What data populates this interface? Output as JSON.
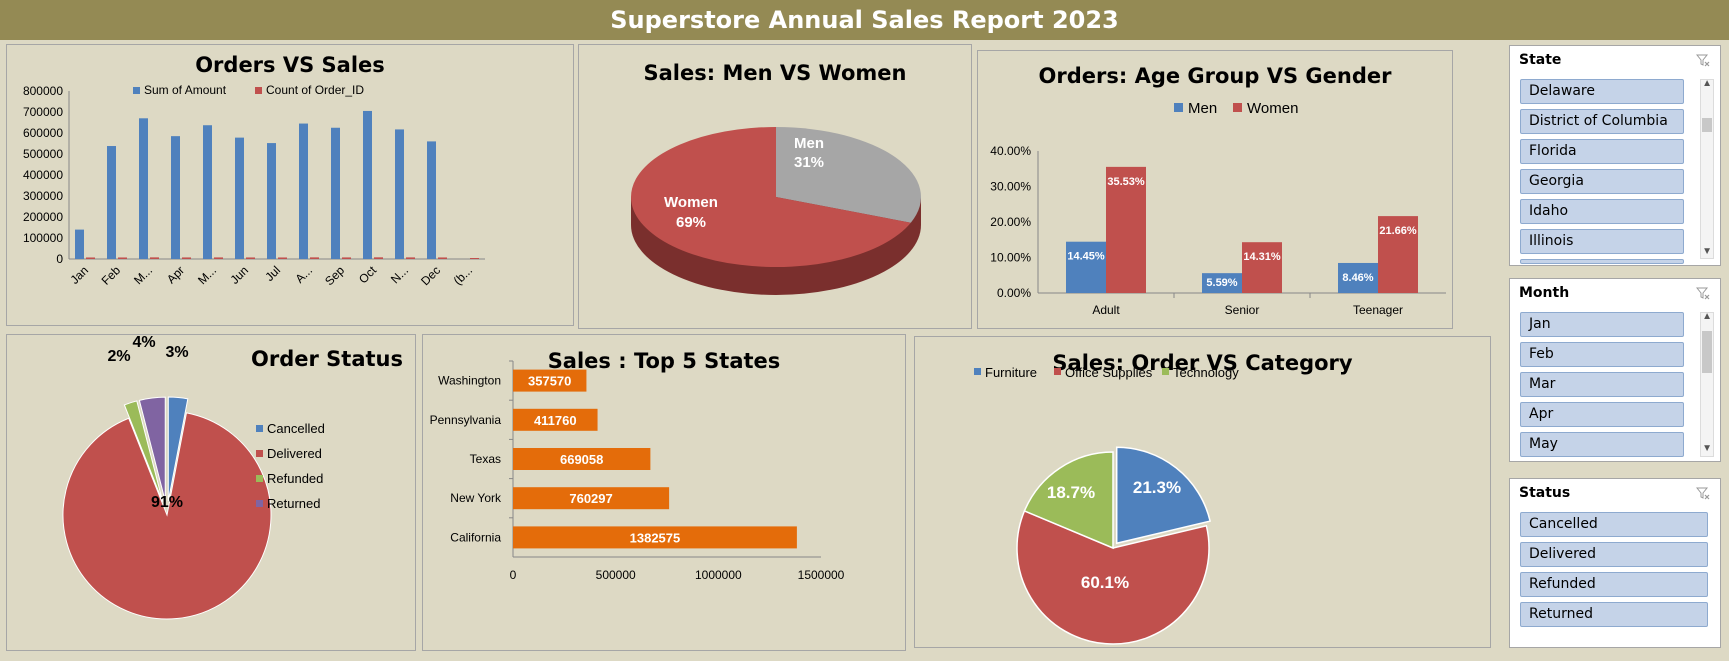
{
  "report_title": "Superstore Annual Sales Report 2023",
  "colors": {
    "blue": "#4f81bd",
    "red": "#c0504d",
    "green": "#9bbb59",
    "purple": "#8064a2",
    "orange": "#e46c0a",
    "gray": "#a6a6a6",
    "titlebar": "#948a54",
    "panel": "#ddd9c4"
  },
  "chart_data": [
    {
      "id": "orders_vs_sales",
      "type": "bar",
      "title": "Orders VS Sales",
      "categories": [
        "Jan",
        "Feb",
        "M...",
        "Apr",
        "M...",
        "Jun",
        "Jul",
        "A...",
        "Sep",
        "Oct",
        "N...",
        "Dec",
        "(b..."
      ],
      "series": [
        {
          "name": "Sum of Amount",
          "values": [
            140000,
            538000,
            670000,
            585000,
            637000,
            578000,
            552000,
            645000,
            625000,
            705000,
            617000,
            560000,
            0
          ]
        },
        {
          "name": "Count of Order_ID",
          "values": [
            2500,
            2500,
            3000,
            2700,
            2800,
            2600,
            2500,
            3000,
            2800,
            3200,
            2900,
            2600,
            0
          ]
        }
      ],
      "y_ticks": [
        "0",
        "100000",
        "200000",
        "300000",
        "400000",
        "500000",
        "600000",
        "700000",
        "800000"
      ],
      "ylim": [
        0,
        800000
      ],
      "legend": "top"
    },
    {
      "id": "men_vs_women",
      "type": "pie",
      "title": "Sales: Men VS Women",
      "labels": [
        "Men",
        "Women"
      ],
      "values": [
        31,
        69
      ],
      "value_labels": [
        "31%",
        "69%"
      ]
    },
    {
      "id": "age_group_gender",
      "type": "bar",
      "title": "Orders: Age Group VS Gender",
      "categories": [
        "Adult",
        "Senior",
        "Teenager"
      ],
      "series": [
        {
          "name": "Men",
          "values": [
            14.45,
            5.59,
            8.46
          ],
          "labels": [
            "14.45%",
            "5.59%",
            "8.46%"
          ]
        },
        {
          "name": "Women",
          "values": [
            35.53,
            14.31,
            21.66
          ],
          "labels": [
            "35.53%",
            "14.31%",
            "21.66%"
          ]
        }
      ],
      "y_ticks": [
        "0.00%",
        "10.00%",
        "20.00%",
        "30.00%",
        "40.00%"
      ],
      "ylim": [
        0,
        40
      ],
      "legend": "top"
    },
    {
      "id": "order_status",
      "type": "pie",
      "title": "Order Status",
      "labels": [
        "Cancelled",
        "Delivered",
        "Refunded",
        "Returned"
      ],
      "values": [
        3,
        91,
        2,
        4
      ],
      "value_labels": [
        "3%",
        "91%",
        "2%",
        "4%"
      ],
      "legend": "right"
    },
    {
      "id": "top5_states",
      "type": "bar",
      "orientation": "horizontal",
      "title": "Sales : Top 5 States",
      "categories": [
        "Washington",
        "Pennsylvania",
        "Texas",
        "New York",
        "California"
      ],
      "values": [
        357570,
        411760,
        669058,
        760297,
        1382575
      ],
      "value_labels": [
        "357570",
        "411760",
        "669058",
        "760297",
        "1382575"
      ],
      "x_ticks": [
        "0",
        "500000",
        "1000000",
        "1500000"
      ],
      "xlim": [
        0,
        1500000
      ]
    },
    {
      "id": "order_vs_category",
      "type": "pie",
      "title": "Sales: Order VS Category",
      "labels": [
        "Furniture",
        "Office Supplies",
        "Technology"
      ],
      "values": [
        21.3,
        60.1,
        18.7
      ],
      "value_labels": [
        "21.3%",
        "60.1%",
        "18.7%"
      ],
      "legend": "top"
    }
  ],
  "slicers": {
    "state": {
      "title": "State",
      "items": [
        "Delaware",
        "District of Columbia",
        "Florida",
        "Georgia",
        "Idaho",
        "Illinois"
      ]
    },
    "month": {
      "title": "Month",
      "items": [
        "Jan",
        "Feb",
        "Mar",
        "Apr",
        "May"
      ]
    },
    "status": {
      "title": "Status",
      "items": [
        "Cancelled",
        "Delivered",
        "Refunded",
        "Returned"
      ]
    }
  }
}
